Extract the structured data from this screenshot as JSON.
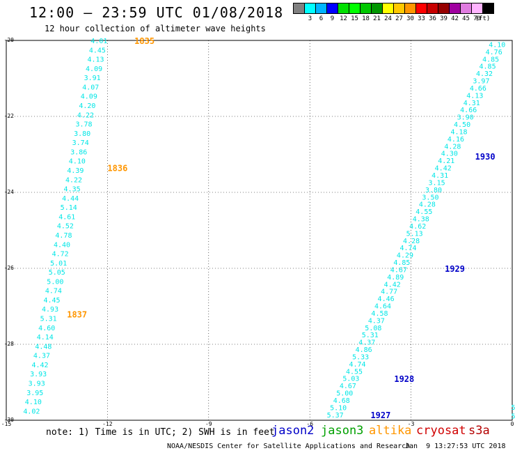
{
  "header": {
    "title": "12:00 – 23:59 UTC 01/08/2018",
    "subtitle": "12 hour collection of altimeter wave heights"
  },
  "colorbar": {
    "unit_label": "(ft)",
    "swatches": [
      {
        "label": "",
        "color": "#808080"
      },
      {
        "label": "3",
        "color": "#00ffff"
      },
      {
        "label": "6",
        "color": "#00b4ff"
      },
      {
        "label": "9",
        "color": "#0000ff"
      },
      {
        "label": "12",
        "color": "#00e000"
      },
      {
        "label": "15",
        "color": "#00ff00"
      },
      {
        "label": "18",
        "color": "#00c800"
      },
      {
        "label": "21",
        "color": "#009600"
      },
      {
        "label": "24",
        "color": "#ffff00"
      },
      {
        "label": "27",
        "color": "#ffc800"
      },
      {
        "label": "30",
        "color": "#ff9600"
      },
      {
        "label": "33",
        "color": "#ff0000"
      },
      {
        "label": "36",
        "color": "#c80000"
      },
      {
        "label": "39",
        "color": "#960000"
      },
      {
        "label": "42",
        "color": "#a000a0"
      },
      {
        "label": "45",
        "color": "#e07ce0"
      },
      {
        "label": "70",
        "color": "#ffb4ff"
      },
      {
        "label": "",
        "color": "#000000"
      }
    ]
  },
  "map": {
    "lon_range": [
      -15,
      0
    ],
    "lat_range": [
      -30,
      -20
    ],
    "x_ticks": [
      {
        "value": -15,
        "label": "-15"
      },
      {
        "value": -12,
        "label": "-12"
      },
      {
        "value": -9,
        "label": "-9"
      },
      {
        "value": -6,
        "label": "-6"
      },
      {
        "value": -3,
        "label": "-3"
      },
      {
        "value": 0,
        "label": "0"
      }
    ],
    "y_ticks": [
      {
        "value": -20,
        "label": "-20"
      },
      {
        "value": -22,
        "label": "-22"
      },
      {
        "value": -24,
        "label": "-24"
      },
      {
        "value": -26,
        "label": "-26"
      },
      {
        "value": -28,
        "label": "-28"
      },
      {
        "value": -30,
        "label": "-30"
      }
    ],
    "grid": true,
    "value_color": "#00e6e6",
    "tracks": [
      {
        "satellite": "altika",
        "color": "#ff9600",
        "start": {
          "lat": -20.0,
          "lon": -12.0
        },
        "end": {
          "lat": -29.75,
          "lon": -14.0
        },
        "values": [
          "4.01",
          "4.45",
          "4.13",
          "4.09",
          "3.91",
          "4.07",
          "4.09",
          "4.20",
          "4.22",
          "3.78",
          "3.80",
          "3.74",
          "3.86",
          "4.10",
          "4.39",
          "4.22",
          "4.35",
          "4.44",
          "5.14",
          "4.61",
          "4.52",
          "4.78",
          "4.40",
          "4.72",
          "5.01",
          "5.05",
          "5.00",
          "4.74",
          "4.45",
          "4.93",
          "5.31",
          "4.60",
          "4.14",
          "4.48",
          "4.37",
          "4.42",
          "3.93",
          "3.93",
          "3.95",
          "4.10",
          "4.02"
        ],
        "time_labels": [
          {
            "text": "1835",
            "lat": -20.0,
            "lon": -11.2
          },
          {
            "text": "1836",
            "lat": -23.35,
            "lon": -12.0
          },
          {
            "text": "1837",
            "lat": -27.2,
            "lon": -13.2
          }
        ]
      },
      {
        "satellite": "jason2",
        "color": "#0000c8",
        "start": {
          "lat": -20.1,
          "lon": -0.2
        },
        "end": {
          "lat": -29.85,
          "lon": -5.0
        },
        "values": [
          "4.10",
          "4.76",
          "4.85",
          "4.85",
          "4.32",
          "3.97",
          "4.66",
          "4.13",
          "4.31",
          "4.66",
          "3.90",
          "4.50",
          "4.18",
          "4.16",
          "4.28",
          "4.30",
          "4.21",
          "4.42",
          "4.31",
          "3.15",
          "3.80",
          "3.50",
          "4.28",
          "4.55",
          "4.38",
          "4.62",
          "5.13",
          "4.28",
          "4.74",
          "4.29",
          "4.85",
          "4.67",
          "4.89",
          "4.42",
          "4.77",
          "4.46",
          "4.64",
          "4.58",
          "4.37",
          "5.08",
          "5.31",
          "4.37",
          "4.86",
          "5.33",
          "4.74",
          "4.55",
          "5.03",
          "4.67",
          "5.00",
          "4.68",
          "5.10",
          "5.37"
        ],
        "time_labels": [
          {
            "text": "1930",
            "lat": -23.05,
            "lon": -1.1
          },
          {
            "text": "1929",
            "lat": -26.0,
            "lon": -2.0
          },
          {
            "text": "1928",
            "lat": -28.9,
            "lon": -3.5
          },
          {
            "text": "1927",
            "lat": -29.85,
            "lon": -4.2
          }
        ]
      }
    ],
    "edge_fragments": [
      {
        "text": "5.",
        "lat": -29.65,
        "lon": -0.03
      },
      {
        "text": "5",
        "lat": -29.88,
        "lon": -0.03
      }
    ]
  },
  "footer": {
    "note": "note: 1) Time is in UTC; 2) SWH is in feet",
    "legend": [
      {
        "name": "jason2",
        "color": "#0000c8"
      },
      {
        "name": "jason3",
        "color": "#00a000"
      },
      {
        "name": "altika",
        "color": "#ff9600"
      },
      {
        "name": "cryosat",
        "color": "#d00000"
      },
      {
        "name": "s3a",
        "color": "#b40000"
      }
    ],
    "credit": "NOAA/NESDIS Center for Satellite Applications and Research",
    "timestamp": "Jan  9 13:27:53 UTC 2018"
  }
}
